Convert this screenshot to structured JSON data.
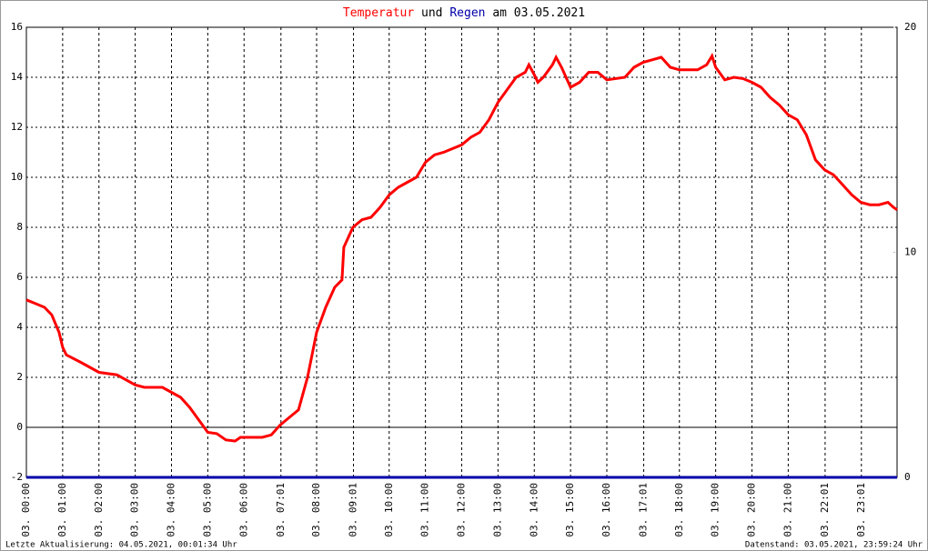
{
  "chart_data": {
    "type": "line",
    "title_parts": [
      {
        "text": "Temperatur",
        "color": "#ff0000"
      },
      {
        "text": "und",
        "color": "#000000"
      },
      {
        "text": "Regen",
        "color": "#0000aa"
      },
      {
        "text": "am 03.05.2021",
        "color": "#000000"
      }
    ],
    "footer_left": "Letzte Aktualisierung: 04.05.2021, 00:01:34 Uhr",
    "footer_right": "Datenstand: 03.05.2021, 23:59:24 Uhr",
    "xlim": [
      0,
      24
    ],
    "xticks": [
      {
        "value": 0,
        "label": "03. 00:00"
      },
      {
        "value": 1,
        "label": "03. 01:00"
      },
      {
        "value": 2,
        "label": "03. 02:00"
      },
      {
        "value": 3,
        "label": "03. 03:00"
      },
      {
        "value": 4,
        "label": "03. 04:00"
      },
      {
        "value": 5,
        "label": "03. 05:00"
      },
      {
        "value": 6,
        "label": "03. 06:00"
      },
      {
        "value": 7.0167,
        "label": "03. 07:01"
      },
      {
        "value": 8,
        "label": "03. 08:00"
      },
      {
        "value": 9.0167,
        "label": "03. 09:01"
      },
      {
        "value": 10,
        "label": "03. 10:00"
      },
      {
        "value": 11,
        "label": "03. 11:00"
      },
      {
        "value": 12,
        "label": "03. 12:00"
      },
      {
        "value": 13,
        "label": "03. 13:00"
      },
      {
        "value": 14,
        "label": "03. 14:00"
      },
      {
        "value": 15,
        "label": "03. 15:00"
      },
      {
        "value": 16,
        "label": "03. 16:00"
      },
      {
        "value": 17.0167,
        "label": "03. 17:01"
      },
      {
        "value": 18,
        "label": "03. 18:00"
      },
      {
        "value": 19,
        "label": "03. 19:00"
      },
      {
        "value": 20,
        "label": "03. 20:00"
      },
      {
        "value": 21,
        "label": "03. 21:00"
      },
      {
        "value": 22.0167,
        "label": "03. 22:01"
      },
      {
        "value": 23.0167,
        "label": "03. 23:01"
      }
    ],
    "ylim": [
      -2,
      16
    ],
    "yticks": [
      -2,
      0,
      2,
      4,
      6,
      8,
      10,
      12,
      14,
      16
    ],
    "y2lim": [
      0,
      20
    ],
    "y2ticks": [
      0,
      10,
      20
    ],
    "grid": true,
    "series": [
      {
        "name": "Temperatur",
        "color": "#ff0000",
        "x": [
          0,
          0.25,
          0.5,
          0.7,
          0.9,
          1,
          1.1,
          1.5,
          1.75,
          2,
          2.5,
          3,
          3.25,
          3.5,
          3.75,
          4,
          4.25,
          4.5,
          4.75,
          5,
          5.25,
          5.5,
          5.75,
          5.9,
          6,
          6.5,
          6.75,
          7,
          7.25,
          7.5,
          7.75,
          8,
          8.25,
          8.5,
          8.7,
          8.75,
          9,
          9.25,
          9.5,
          9.75,
          10,
          10.25,
          10.5,
          10.75,
          11,
          11.25,
          11.5,
          12,
          12.25,
          12.5,
          12.75,
          13,
          13.25,
          13.5,
          13.75,
          13.85,
          14,
          14.1,
          14.25,
          14.5,
          14.6,
          14.75,
          15,
          15.25,
          15.5,
          15.75,
          16,
          16.5,
          16.75,
          17,
          17.25,
          17.5,
          17.75,
          18,
          18.25,
          18.5,
          18.75,
          18.9,
          19,
          19.25,
          19.5,
          19.75,
          20,
          20.25,
          20.5,
          20.75,
          21,
          21.25,
          21.5,
          21.75,
          22,
          22.25,
          22.5,
          22.75,
          23,
          23.25,
          23.5,
          23.75,
          23.9,
          24
        ],
        "values": [
          5.1,
          4.95,
          4.8,
          4.5,
          3.8,
          3.2,
          2.9,
          2.6,
          2.4,
          2.2,
          2.1,
          1.7,
          1.6,
          1.6,
          1.6,
          1.4,
          1.2,
          0.8,
          0.3,
          -0.2,
          -0.25,
          -0.5,
          -0.55,
          -0.4,
          -0.4,
          -0.4,
          -0.3,
          0.1,
          0.4,
          0.7,
          2,
          3.8,
          4.8,
          5.6,
          5.9,
          7.2,
          8,
          8.3,
          8.4,
          8.8,
          9.3,
          9.6,
          9.8,
          10,
          10.6,
          10.9,
          11,
          11.3,
          11.6,
          11.8,
          12.3,
          13,
          13.5,
          14,
          14.2,
          14.5,
          14.1,
          13.8,
          14,
          14.5,
          14.8,
          14.4,
          13.6,
          13.8,
          14.2,
          14.2,
          13.9,
          14,
          14.4,
          14.6,
          14.7,
          14.8,
          14.4,
          14.3,
          14.3,
          14.3,
          14.5,
          14.85,
          14.4,
          13.9,
          14,
          13.95,
          13.8,
          13.6,
          13.2,
          12.9,
          12.5,
          12.3,
          11.7,
          10.7,
          10.3,
          10.1,
          9.7,
          9.3,
          9,
          8.9,
          8.9,
          9,
          8.8,
          8.7
        ]
      },
      {
        "name": "Regen",
        "color": "#0000aa",
        "axis": "y2",
        "x": [
          0,
          24
        ],
        "values": [
          0,
          0
        ]
      }
    ]
  }
}
